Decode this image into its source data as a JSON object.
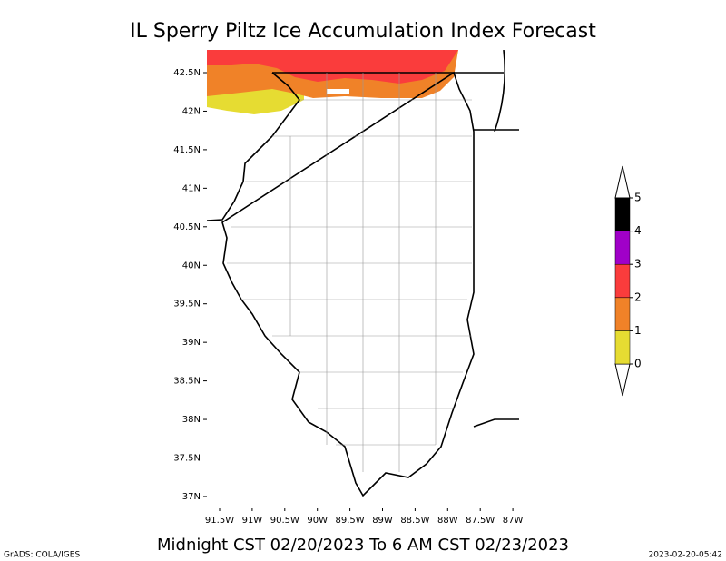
{
  "title": "IL Sperry Piltz Ice Accumulation Index Forecast",
  "subtitle": "Midnight CST 02/20/2023 To 6 AM CST 02/23/2023",
  "credit": "GrADS: COLA/IGES",
  "timestamp": "2023-02-20-05:42",
  "lat_ticks": [
    {
      "value": 42.5,
      "label": "42.5N"
    },
    {
      "value": 42,
      "label": "42N"
    },
    {
      "value": 41.5,
      "label": "41.5N"
    },
    {
      "value": 41,
      "label": "41N"
    },
    {
      "value": 40.5,
      "label": "40.5N"
    },
    {
      "value": 40,
      "label": "40N"
    },
    {
      "value": 39.5,
      "label": "39.5N"
    },
    {
      "value": 39,
      "label": "39N"
    },
    {
      "value": 38.5,
      "label": "38.5N"
    },
    {
      "value": 38,
      "label": "38N"
    },
    {
      "value": 37.5,
      "label": "37.5N"
    },
    {
      "value": 37,
      "label": "37N"
    }
  ],
  "lon_ticks": [
    {
      "value": 91.5,
      "label": "91.5W"
    },
    {
      "value": 91,
      "label": "91W"
    },
    {
      "value": 90.5,
      "label": "90.5W"
    },
    {
      "value": 90,
      "label": "90W"
    },
    {
      "value": 89.5,
      "label": "89.5W"
    },
    {
      "value": 89,
      "label": "89W"
    },
    {
      "value": 88.5,
      "label": "88.5W"
    },
    {
      "value": 88,
      "label": "88W"
    },
    {
      "value": 87.5,
      "label": "87.5W"
    },
    {
      "value": 87,
      "label": "87W"
    }
  ],
  "colorbar": {
    "levels": [
      0,
      1,
      2,
      3,
      4,
      5
    ],
    "colors": [
      "#e6dc32",
      "#f08228",
      "#fa3c3c",
      "#a000c8",
      "#000000"
    ]
  }
}
